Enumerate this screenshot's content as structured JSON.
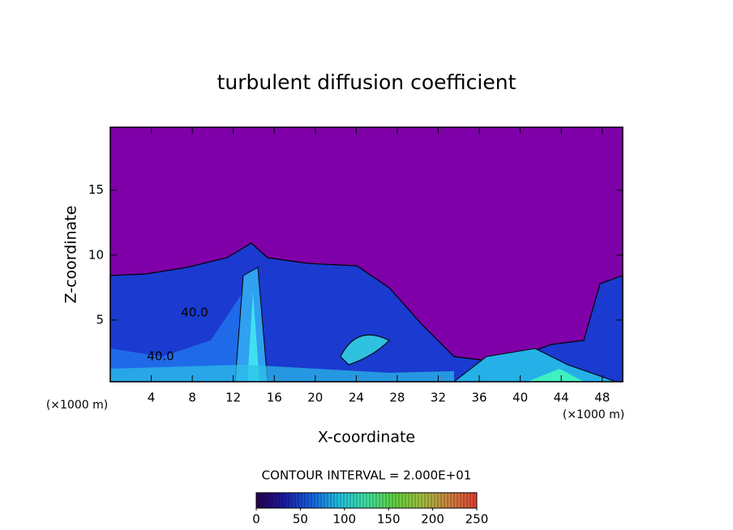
{
  "chart_data": {
    "type": "contour",
    "title": "turbulent diffusion coefficient",
    "x_label": "X-coordinate",
    "y_label": "Z-coordinate",
    "unit_labels": [
      "(×1000 m)",
      "(×1000 m)"
    ],
    "xlim": [
      0,
      50
    ],
    "xticks": [
      4,
      8,
      12,
      16,
      20,
      24,
      28,
      32,
      36,
      40,
      44,
      48
    ],
    "ylim": [
      0.25,
      19.85
    ],
    "yticks": [
      5,
      10,
      15
    ],
    "contour_labels": [
      "40.0",
      "40.0"
    ],
    "contour_interval_label": "CONTOUR INTERVAL = 2.000E+01",
    "background_color": "#7f00a8",
    "colorbar": {
      "lim": [
        0,
        250
      ],
      "ticks": [
        0,
        50,
        100,
        150,
        200,
        250
      ],
      "colors": [
        "#2a0050",
        "#1a1aa0",
        "#1560e0",
        "#20c0e0",
        "#40e0a0",
        "#60d040",
        "#a0c040",
        "#d08040",
        "#e04030"
      ]
    }
  }
}
